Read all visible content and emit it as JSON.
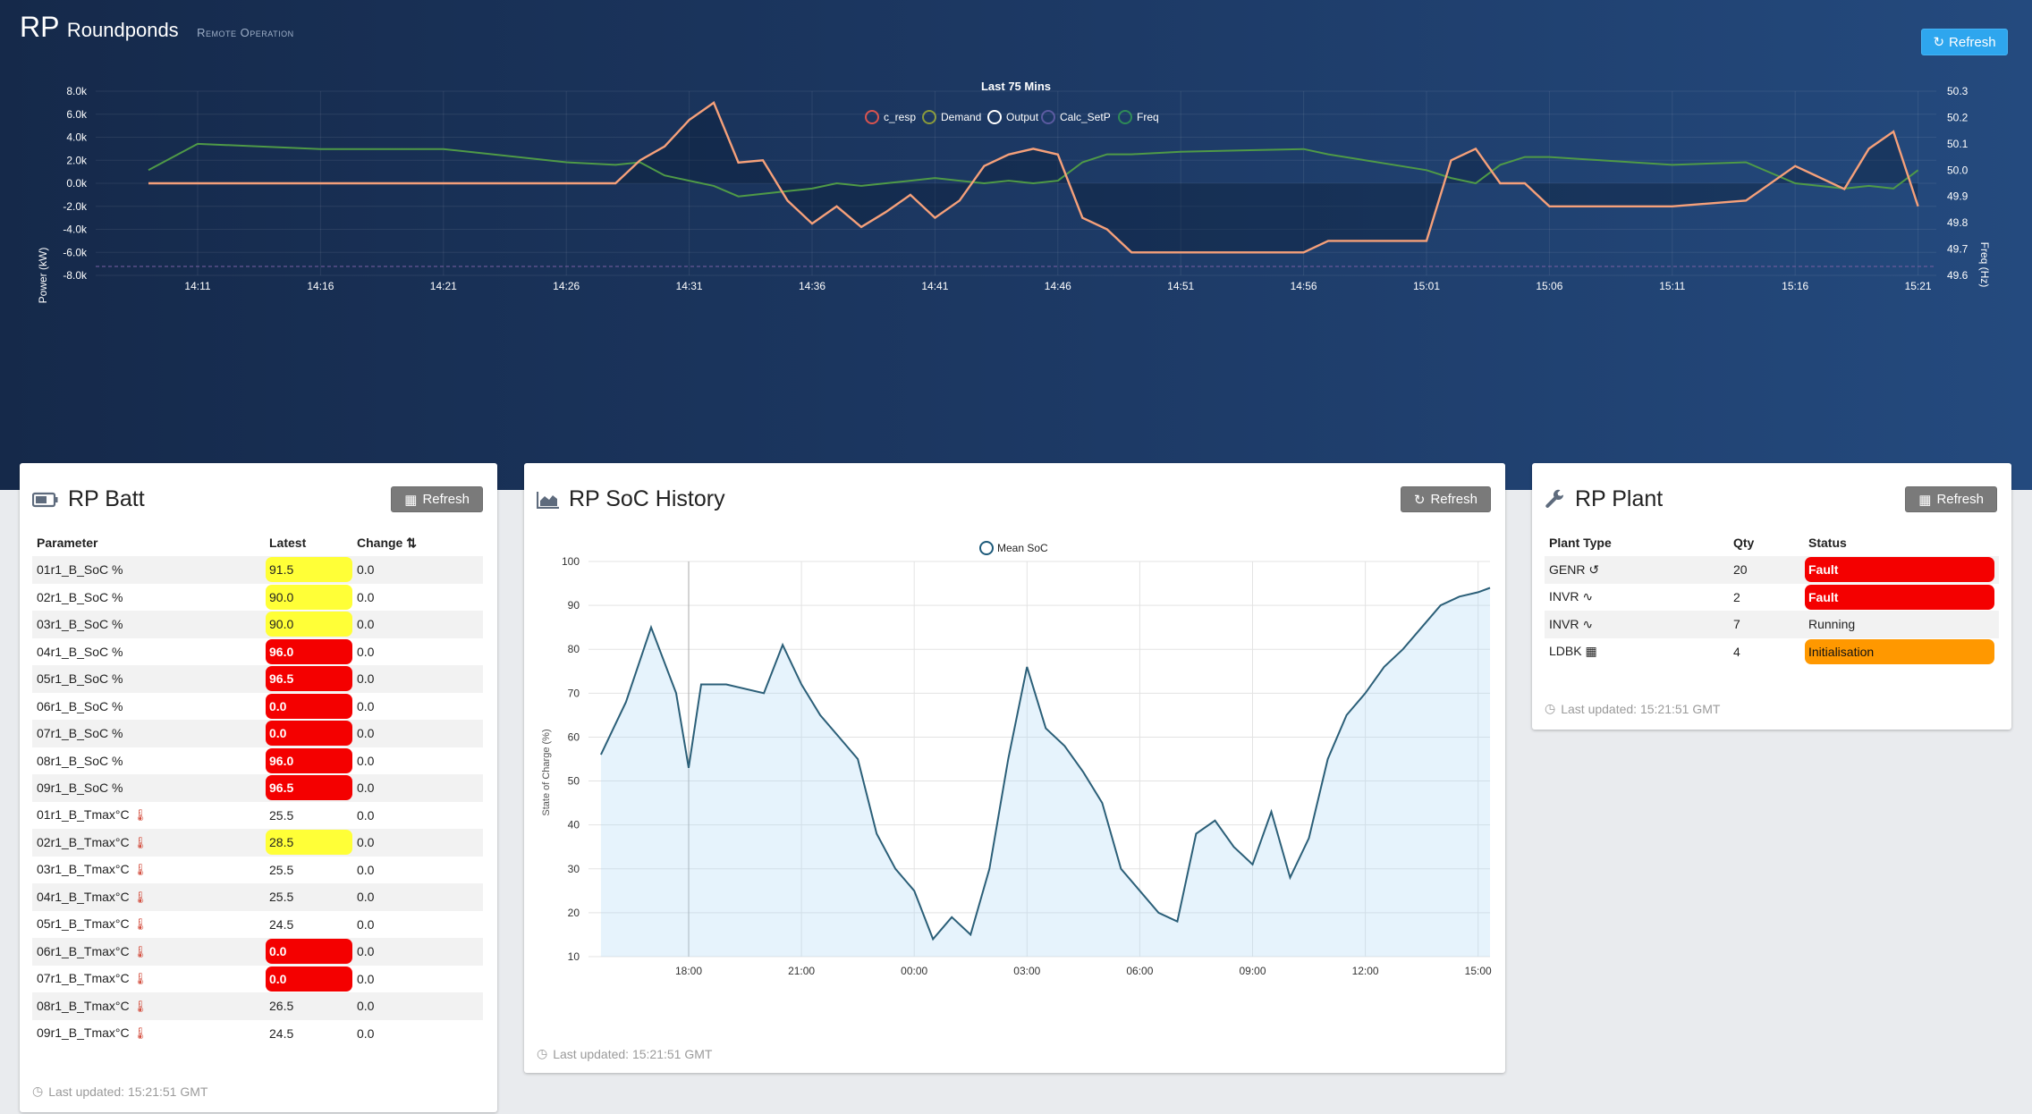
{
  "header": {
    "logo_rp": "RP",
    "logo_name": "Roundponds",
    "subtitle": "Remote Operation",
    "refresh_label": "Refresh"
  },
  "power_chart": {
    "title": "Last 75 Mins",
    "legend": [
      {
        "name": "c_resp",
        "color": "#d9534f"
      },
      {
        "name": "Demand",
        "color": "#8a9a3a"
      },
      {
        "name": "Output",
        "color": "#ffffff"
      },
      {
        "name": "Calc_SetP",
        "color": "#5a5aa0"
      },
      {
        "name": "Freq",
        "color": "#2e8b57"
      }
    ],
    "y_left_label": "Power (kW)",
    "y_right_label": "Freq (Hz)",
    "y_left_ticks": [
      "8.0k",
      "6.0k",
      "4.0k",
      "2.0k",
      "0.0k",
      "-2.0k",
      "-4.0k",
      "-6.0k",
      "-8.0k"
    ],
    "y_right_ticks": [
      "50.3",
      "50.2",
      "50.1",
      "50.0",
      "49.9",
      "49.8",
      "49.7",
      "49.6"
    ],
    "x_ticks": [
      "14:11",
      "14:16",
      "14:21",
      "14:26",
      "14:31",
      "14:36",
      "14:41",
      "14:46",
      "14:51",
      "14:56",
      "15:01",
      "15:06",
      "15:11",
      "15:16",
      "15:21"
    ]
  },
  "batt_panel": {
    "title": "RP Batt",
    "refresh_label": "Refresh",
    "headers": [
      "Parameter",
      "Latest",
      "Change"
    ],
    "rows": [
      {
        "param": "01r1_B_SoC %",
        "latest": "91.5",
        "change": "0.0",
        "level": "yellow",
        "temp": false
      },
      {
        "param": "02r1_B_SoC %",
        "latest": "90.0",
        "change": "0.0",
        "level": "yellow",
        "temp": false
      },
      {
        "param": "03r1_B_SoC %",
        "latest": "90.0",
        "change": "0.0",
        "level": "yellow",
        "temp": false
      },
      {
        "param": "04r1_B_SoC %",
        "latest": "96.0",
        "change": "0.0",
        "level": "red",
        "temp": false
      },
      {
        "param": "05r1_B_SoC %",
        "latest": "96.5",
        "change": "0.0",
        "level": "red",
        "temp": false
      },
      {
        "param": "06r1_B_SoC %",
        "latest": "0.0",
        "change": "0.0",
        "level": "red",
        "temp": false
      },
      {
        "param": "07r1_B_SoC %",
        "latest": "0.0",
        "change": "0.0",
        "level": "red",
        "temp": false
      },
      {
        "param": "08r1_B_SoC %",
        "latest": "96.0",
        "change": "0.0",
        "level": "red",
        "temp": false
      },
      {
        "param": "09r1_B_SoC %",
        "latest": "96.5",
        "change": "0.0",
        "level": "red",
        "temp": false
      },
      {
        "param": "01r1_B_Tmax°C",
        "latest": "25.5",
        "change": "0.0",
        "level": "none",
        "temp": true
      },
      {
        "param": "02r1_B_Tmax°C",
        "latest": "28.5",
        "change": "0.0",
        "level": "yellow",
        "temp": true
      },
      {
        "param": "03r1_B_Tmax°C",
        "latest": "25.5",
        "change": "0.0",
        "level": "none",
        "temp": true
      },
      {
        "param": "04r1_B_Tmax°C",
        "latest": "25.5",
        "change": "0.0",
        "level": "none",
        "temp": true
      },
      {
        "param": "05r1_B_Tmax°C",
        "latest": "24.5",
        "change": "0.0",
        "level": "none",
        "temp": true
      },
      {
        "param": "06r1_B_Tmax°C",
        "latest": "0.0",
        "change": "0.0",
        "level": "red",
        "temp": true
      },
      {
        "param": "07r1_B_Tmax°C",
        "latest": "0.0",
        "change": "0.0",
        "level": "red",
        "temp": true
      },
      {
        "param": "08r1_B_Tmax°C",
        "latest": "26.5",
        "change": "0.0",
        "level": "none",
        "temp": true
      },
      {
        "param": "09r1_B_Tmax°C",
        "latest": "24.5",
        "change": "0.0",
        "level": "none",
        "temp": true
      }
    ],
    "last_updated": "Last updated: 15:21:51 GMT"
  },
  "soc_panel": {
    "title": "RP SoC History",
    "refresh_label": "Refresh",
    "legend": "Mean SoC",
    "y_label": "State of Charge (%)",
    "y_ticks": [
      "100",
      "90",
      "80",
      "70",
      "60",
      "50",
      "40",
      "30",
      "20",
      "10"
    ],
    "x_ticks": [
      "18:00",
      "21:00",
      "00:00",
      "03:00",
      "06:00",
      "09:00",
      "12:00",
      "15:00"
    ],
    "last_updated": "Last updated: 15:21:51 GMT"
  },
  "plant_panel": {
    "title": "RP Plant",
    "refresh_label": "Refresh",
    "headers": [
      "Plant Type",
      "Qty",
      "Status"
    ],
    "rows": [
      {
        "type": "GENR ↺",
        "qty": "20",
        "status": "Fault",
        "level": "red"
      },
      {
        "type": "INVR ∿",
        "qty": "2",
        "status": "Fault",
        "level": "red"
      },
      {
        "type": "INVR ∿",
        "qty": "7",
        "status": "Running",
        "level": "none"
      },
      {
        "type": "LDBK ▦",
        "qty": "4",
        "status": "Initialisation",
        "level": "orange"
      }
    ],
    "last_updated": "Last updated: 15:21:51 GMT"
  },
  "chart_data": [
    {
      "type": "line",
      "title": "Last 75 Mins",
      "ylabel": "Power (kW)",
      "y2label": "Freq (Hz)",
      "ylim": [
        -8000,
        8000
      ],
      "y2lim": [
        49.6,
        50.3
      ],
      "x": [
        "14:09",
        "14:11",
        "14:16",
        "14:21",
        "14:26",
        "14:28",
        "14:29",
        "14:30",
        "14:31",
        "14:32",
        "14:33",
        "14:34",
        "14:35",
        "14:36",
        "14:37",
        "14:38",
        "14:39",
        "14:40",
        "14:41",
        "14:42",
        "14:43",
        "14:44",
        "14:45",
        "14:46",
        "14:47",
        "14:48",
        "14:49",
        "14:51",
        "14:56",
        "14:57",
        "15:01",
        "15:02",
        "15:03",
        "15:04",
        "15:05",
        "15:06",
        "15:11",
        "15:14",
        "15:16",
        "15:18",
        "15:19",
        "15:20",
        "15:21"
      ],
      "series": [
        {
          "name": "Output",
          "values": [
            0,
            0,
            0,
            0,
            0,
            0,
            2000,
            3200,
            5500,
            7000,
            1800,
            2000,
            -1500,
            -3500,
            -2000,
            -3800,
            -2500,
            -1000,
            -3000,
            -1500,
            1500,
            2500,
            3000,
            2500,
            -3000,
            -4000,
            -6000,
            -6000,
            -6000,
            -5000,
            -5000,
            2000,
            3000,
            0,
            0,
            -2000,
            -2000,
            -1500,
            1500,
            -500,
            3000,
            4500,
            -2000
          ]
        },
        {
          "name": "Freq",
          "values": [
            50.0,
            50.1,
            50.08,
            50.08,
            50.03,
            50.02,
            50.03,
            49.98,
            49.96,
            49.94,
            49.9,
            49.91,
            49.92,
            49.93,
            49.95,
            49.94,
            49.95,
            49.96,
            49.97,
            49.96,
            49.95,
            49.96,
            49.95,
            49.96,
            50.03,
            50.06,
            50.06,
            50.07,
            50.08,
            50.06,
            50.0,
            49.97,
            49.95,
            50.02,
            50.05,
            50.05,
            50.02,
            50.03,
            49.95,
            49.93,
            49.94,
            49.93,
            50.0
          ]
        }
      ]
    },
    {
      "type": "area",
      "title": "",
      "ylabel": "State of Charge (%)",
      "ylim": [
        10,
        100
      ],
      "x": [
        "15:40",
        "16:00",
        "16:20",
        "17:00",
        "17:40",
        "18:00",
        "18:20",
        "19:00",
        "20:00",
        "20:30",
        "21:00",
        "21:30",
        "22:00",
        "22:30",
        "23:00",
        "23:30",
        "00:00",
        "00:30",
        "01:00",
        "01:30",
        "02:00",
        "02:30",
        "03:00",
        "03:30",
        "04:00",
        "04:30",
        "05:00",
        "05:30",
        "06:00",
        "06:30",
        "07:00",
        "07:30",
        "08:00",
        "08:30",
        "09:00",
        "09:30",
        "10:00",
        "10:30",
        "11:00",
        "11:30",
        "12:00",
        "12:30",
        "13:00",
        "13:30",
        "14:00",
        "14:30",
        "15:00",
        "15:20"
      ],
      "series": [
        {
          "name": "Mean SoC",
          "values": [
            56,
            62,
            68,
            85,
            70,
            53,
            72,
            72,
            70,
            81,
            72,
            65,
            60,
            55,
            38,
            30,
            25,
            14,
            19,
            15,
            30,
            55,
            76,
            62,
            58,
            52,
            45,
            30,
            25,
            20,
            18,
            38,
            41,
            35,
            31,
            43,
            28,
            37,
            55,
            65,
            70,
            76,
            80,
            85,
            90,
            92,
            93,
            94
          ]
        }
      ]
    }
  ]
}
